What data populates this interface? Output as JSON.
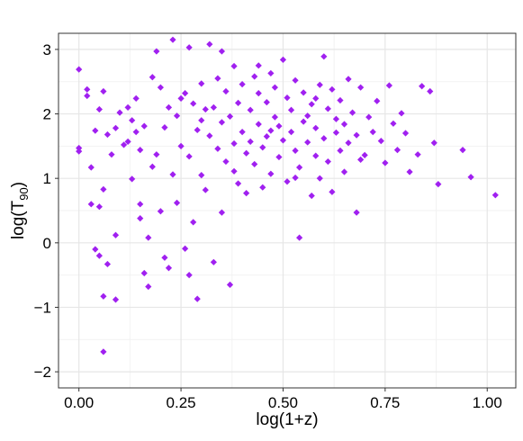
{
  "chart_data": {
    "type": "scatter",
    "title": "",
    "xlabel": "log(1+z)",
    "ylabel": {
      "base": "log(T",
      "sub": "90",
      "close": ")"
    },
    "xlim": [
      -0.05,
      1.07
    ],
    "ylim": [
      -2.25,
      3.25
    ],
    "xticks": [
      0.0,
      0.25,
      0.5,
      0.75,
      1.0
    ],
    "xtick_labels": [
      "0.00",
      "0.25",
      "0.50",
      "0.75",
      "1.00"
    ],
    "yticks": [
      -2,
      -1,
      0,
      1,
      2,
      3
    ],
    "ytick_labels": [
      "−2",
      "−1",
      "0",
      "1",
      "2",
      "3"
    ],
    "grid": true,
    "marker": "diamond",
    "marker_color": "#a020f0",
    "points": [
      [
        0.0,
        2.69
      ],
      [
        0.0,
        1.47
      ],
      [
        0.0,
        1.42
      ],
      [
        0.02,
        2.28
      ],
      [
        0.02,
        2.38
      ],
      [
        0.04,
        1.74
      ],
      [
        0.03,
        1.17
      ],
      [
        0.03,
        0.6
      ],
      [
        0.04,
        -0.1
      ],
      [
        0.05,
        -0.2
      ],
      [
        0.05,
        0.56
      ],
      [
        0.06,
        0.83
      ],
      [
        0.06,
        2.35
      ],
      [
        0.05,
        2.07
      ],
      [
        0.07,
        1.68
      ],
      [
        0.06,
        -0.83
      ],
      [
        0.07,
        -0.33
      ],
      [
        0.08,
        1.37
      ],
      [
        0.09,
        0.12
      ],
      [
        0.09,
        -0.88
      ],
      [
        0.09,
        1.78
      ],
      [
        0.1,
        2.02
      ],
      [
        0.11,
        1.52
      ],
      [
        0.12,
        2.1
      ],
      [
        0.12,
        1.57
      ],
      [
        0.13,
        0.99
      ],
      [
        0.13,
        1.9
      ],
      [
        0.14,
        2.24
      ],
      [
        0.14,
        1.72
      ],
      [
        0.15,
        1.44
      ],
      [
        0.15,
        0.38
      ],
      [
        0.16,
        -0.47
      ],
      [
        0.16,
        1.81
      ],
      [
        0.17,
        0.08
      ],
      [
        0.17,
        -0.68
      ],
      [
        0.18,
        2.57
      ],
      [
        0.18,
        1.18
      ],
      [
        0.19,
        2.97
      ],
      [
        0.19,
        1.37
      ],
      [
        0.2,
        0.49
      ],
      [
        0.2,
        2.41
      ],
      [
        0.21,
        1.79
      ],
      [
        0.21,
        -0.23
      ],
      [
        0.22,
        2.1
      ],
      [
        0.23,
        3.15
      ],
      [
        0.23,
        1.06
      ],
      [
        0.24,
        1.97
      ],
      [
        0.24,
        0.62
      ],
      [
        0.25,
        2.24
      ],
      [
        0.25,
        1.5
      ],
      [
        0.26,
        2.32
      ],
      [
        0.26,
        -0.09
      ],
      [
        0.27,
        1.34
      ],
      [
        0.27,
        3.03
      ],
      [
        0.28,
        2.16
      ],
      [
        0.28,
        0.32
      ],
      [
        0.29,
        1.75
      ],
      [
        0.29,
        -0.87
      ],
      [
        0.3,
        2.47
      ],
      [
        0.3,
        1.05
      ],
      [
        0.31,
        2.07
      ],
      [
        0.31,
        0.82
      ],
      [
        0.32,
        3.08
      ],
      [
        0.32,
        1.66
      ],
      [
        0.33,
        2.1
      ],
      [
        0.33,
        -0.3
      ],
      [
        0.34,
        1.46
      ],
      [
        0.34,
        2.55
      ],
      [
        0.35,
        1.87
      ],
      [
        0.35,
        0.47
      ],
      [
        0.36,
        2.35
      ],
      [
        0.36,
        1.26
      ],
      [
        0.37,
        1.96
      ],
      [
        0.37,
        -0.65
      ],
      [
        0.38,
        2.74
      ],
      [
        0.38,
        1.54
      ],
      [
        0.39,
        0.92
      ],
      [
        0.39,
        2.17
      ],
      [
        0.4,
        1.72
      ],
      [
        0.4,
        2.46
      ],
      [
        0.41,
        1.39
      ],
      [
        0.41,
        0.77
      ],
      [
        0.42,
        2.06
      ],
      [
        0.42,
        1.57
      ],
      [
        0.43,
        2.58
      ],
      [
        0.43,
        1.22
      ],
      [
        0.44,
        1.84
      ],
      [
        0.44,
        2.32
      ],
      [
        0.45,
        1.48
      ],
      [
        0.45,
        0.86
      ],
      [
        0.46,
        2.18
      ],
      [
        0.46,
        1.65
      ],
      [
        0.47,
        2.63
      ],
      [
        0.47,
        1.07
      ],
      [
        0.48,
        1.95
      ],
      [
        0.48,
        2.41
      ],
      [
        0.49,
        1.33
      ],
      [
        0.49,
        1.81
      ],
      [
        0.5,
        2.84
      ],
      [
        0.5,
        1.59
      ],
      [
        0.51,
        2.25
      ],
      [
        0.51,
        0.95
      ],
      [
        0.52,
        1.72
      ],
      [
        0.52,
        2.06
      ],
      [
        0.53,
        1.43
      ],
      [
        0.53,
        2.52
      ],
      [
        0.54,
        1.17
      ],
      [
        0.54,
        0.08
      ],
      [
        0.55,
        1.88
      ],
      [
        0.55,
        2.33
      ],
      [
        0.56,
        1.56
      ],
      [
        0.56,
        1.97
      ],
      [
        0.57,
        0.73
      ],
      [
        0.57,
        2.15
      ],
      [
        0.58,
        1.35
      ],
      [
        0.58,
        1.78
      ],
      [
        0.59,
        2.45
      ],
      [
        0.59,
        1.0
      ],
      [
        0.6,
        2.89
      ],
      [
        0.6,
        1.62
      ],
      [
        0.61,
        2.08
      ],
      [
        0.61,
        1.26
      ],
      [
        0.62,
        0.79
      ],
      [
        0.62,
        2.38
      ],
      [
        0.63,
        1.71
      ],
      [
        0.63,
        1.92
      ],
      [
        0.64,
        1.43
      ],
      [
        0.64,
        2.21
      ],
      [
        0.65,
        1.1
      ],
      [
        0.65,
        1.84
      ],
      [
        0.66,
        2.54
      ],
      [
        0.66,
        1.55
      ],
      [
        0.67,
        2.02
      ],
      [
        0.68,
        0.47
      ],
      [
        0.68,
        1.67
      ],
      [
        0.69,
        2.41
      ],
      [
        0.7,
        1.36
      ],
      [
        0.71,
        1.95
      ],
      [
        0.72,
        1.72
      ],
      [
        0.73,
        2.2
      ],
      [
        0.74,
        1.58
      ],
      [
        0.75,
        1.24
      ],
      [
        0.76,
        2.44
      ],
      [
        0.77,
        1.85
      ],
      [
        0.78,
        1.44
      ],
      [
        0.79,
        2.01
      ],
      [
        0.8,
        1.7
      ],
      [
        0.81,
        1.1
      ],
      [
        0.83,
        1.37
      ],
      [
        0.84,
        2.43
      ],
      [
        0.86,
        2.35
      ],
      [
        0.87,
        1.55
      ],
      [
        0.88,
        0.91
      ],
      [
        0.94,
        1.44
      ],
      [
        0.96,
        1.02
      ],
      [
        1.02,
        0.74
      ],
      [
        0.06,
        -1.69
      ],
      [
        0.22,
        -0.39
      ],
      [
        0.27,
        -0.5
      ],
      [
        0.15,
        0.6
      ],
      [
        0.35,
        2.97
      ],
      [
        0.44,
        2.75
      ],
      [
        0.3,
        1.9
      ],
      [
        0.47,
        1.74
      ],
      [
        0.53,
        1.01
      ],
      [
        0.38,
        1.11
      ],
      [
        0.58,
        2.24
      ],
      [
        0.69,
        1.29
      ]
    ]
  }
}
